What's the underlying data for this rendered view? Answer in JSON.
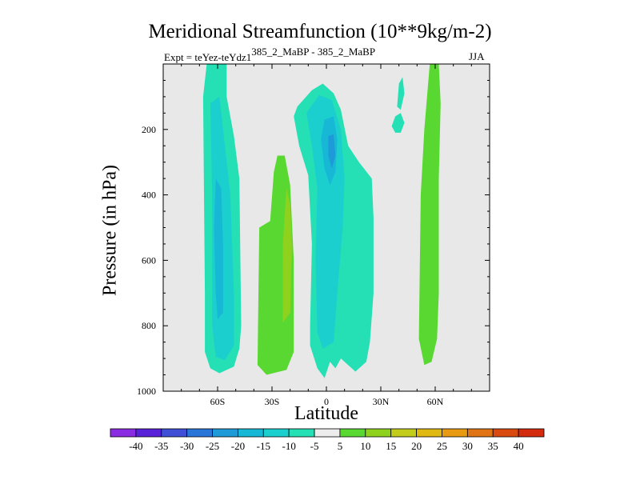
{
  "chart_data": {
    "type": "contour",
    "title": "Meridional Streamfunction (10**9kg/m-2)",
    "subtitle_left": "Expt = teYez-teYdz1",
    "subtitle_left_super": "385_2_MaBP - 385_2_MaBP",
    "subtitle_right": "JJA",
    "xlabel": "Latitude",
    "ylabel": "Pressure (in hPa)",
    "xlim": [
      -90,
      90
    ],
    "ylim": [
      1000,
      0
    ],
    "x_ticks": [
      {
        "value": -60,
        "label": "60S"
      },
      {
        "value": -30,
        "label": "30S"
      },
      {
        "value": 0,
        "label": "0"
      },
      {
        "value": 30,
        "label": "30N"
      },
      {
        "value": 60,
        "label": "60N"
      }
    ],
    "y_ticks": [
      {
        "value": 200,
        "label": "200"
      },
      {
        "value": 400,
        "label": "400"
      },
      {
        "value": 600,
        "label": "600"
      },
      {
        "value": 800,
        "label": "800"
      },
      {
        "value": 1000,
        "label": "1000"
      }
    ],
    "colorbar": {
      "labels": [
        "-40",
        "-35",
        "-30",
        "-25",
        "-20",
        "-15",
        "-10",
        "-5",
        "5",
        "10",
        "15",
        "20",
        "25",
        "30",
        "35",
        "40"
      ],
      "colors": [
        "#8a2ce2",
        "#5a22d8",
        "#3f4fd6",
        "#2a76d8",
        "#1e9ad8",
        "#16b8d6",
        "#1ccfcf",
        "#24e0b4",
        "#ececec",
        "#5ad832",
        "#8fd21e",
        "#c2cc1a",
        "#e0b812",
        "#e89a12",
        "#e07414",
        "#d84a10",
        "#d42a0e"
      ]
    },
    "regions": [
      {
        "name": "southern-cell",
        "level": "-5",
        "points": [
          [
            -66,
            0
          ],
          [
            -55,
            0
          ],
          [
            -55,
            100
          ],
          [
            -51,
            220
          ],
          [
            -48,
            350
          ],
          [
            -47,
            800
          ],
          [
            -48,
            870
          ],
          [
            -51,
            925
          ],
          [
            -59,
            945
          ],
          [
            -64,
            930
          ],
          [
            -67,
            880
          ],
          [
            -67,
            700
          ],
          [
            -68,
            100
          ]
        ]
      },
      {
        "name": "southern-cell-core",
        "level": "-10",
        "points": [
          [
            -64,
            120
          ],
          [
            -59,
            100
          ],
          [
            -56,
            250
          ],
          [
            -53,
            400
          ],
          [
            -51,
            700
          ],
          [
            -51,
            860
          ],
          [
            -56,
            905
          ],
          [
            -61,
            895
          ],
          [
            -63,
            800
          ],
          [
            -63,
            400
          ]
        ]
      },
      {
        "name": "southern-cell-inner",
        "level": "-15",
        "points": [
          [
            -61,
            350
          ],
          [
            -58,
            380
          ],
          [
            -57,
            550
          ],
          [
            -57,
            760
          ],
          [
            -60,
            780
          ],
          [
            -61,
            700
          ],
          [
            -62,
            500
          ]
        ]
      },
      {
        "name": "sh-subtropical-pos",
        "level": "5",
        "points": [
          [
            -27,
            280
          ],
          [
            -23,
            280
          ],
          [
            -20,
            370
          ],
          [
            -18,
            600
          ],
          [
            -18,
            880
          ],
          [
            -22,
            935
          ],
          [
            -33,
            950
          ],
          [
            -38,
            920
          ],
          [
            -37,
            500
          ],
          [
            -31,
            480
          ],
          [
            -29,
            330
          ]
        ]
      },
      {
        "name": "sh-subtropical-pos-core",
        "level": "10",
        "points": [
          [
            -22,
            380
          ],
          [
            -20,
            430
          ],
          [
            -19,
            560
          ],
          [
            -20,
            760
          ],
          [
            -24,
            790
          ],
          [
            -24,
            550
          ]
        ]
      },
      {
        "name": "equatorial-cell",
        "level": "-5",
        "points": [
          [
            -16,
            130
          ],
          [
            -8,
            80
          ],
          [
            -2,
            60
          ],
          [
            4,
            90
          ],
          [
            8,
            140
          ],
          [
            12,
            250
          ],
          [
            18,
            300
          ],
          [
            25,
            350
          ],
          [
            26,
            470
          ],
          [
            26,
            700
          ],
          [
            24,
            850
          ],
          [
            22,
            910
          ],
          [
            16,
            940
          ],
          [
            8,
            900
          ],
          [
            5,
            930
          ],
          [
            2,
            910
          ],
          [
            -1,
            960
          ],
          [
            -5,
            930
          ],
          [
            -9,
            860
          ],
          [
            -9,
            800
          ],
          [
            -8,
            550
          ],
          [
            -10,
            340
          ],
          [
            -15,
            250
          ],
          [
            -18,
            160
          ]
        ]
      },
      {
        "name": "equatorial-cell-core",
        "level": "-10",
        "points": [
          [
            -11,
            150
          ],
          [
            -4,
            95
          ],
          [
            3,
            110
          ],
          [
            8,
            200
          ],
          [
            10,
            350
          ],
          [
            9,
            500
          ],
          [
            6,
            700
          ],
          [
            4,
            850
          ],
          [
            -2,
            870
          ],
          [
            -5,
            820
          ],
          [
            -6,
            600
          ],
          [
            -5,
            380
          ],
          [
            -8,
            250
          ]
        ]
      },
      {
        "name": "equatorial-cell-inner",
        "level": "-15",
        "points": [
          [
            -1,
            170
          ],
          [
            4,
            160
          ],
          [
            6,
            230
          ],
          [
            5,
            330
          ],
          [
            2,
            370
          ],
          [
            -1,
            320
          ],
          [
            -3,
            230
          ]
        ]
      },
      {
        "name": "equatorial-cell-peak",
        "level": "-20",
        "points": [
          [
            1,
            220
          ],
          [
            4,
            215
          ],
          [
            5,
            280
          ],
          [
            3,
            320
          ],
          [
            1,
            280
          ]
        ]
      },
      {
        "name": "nh-neg-blob",
        "level": "-5",
        "points": [
          [
            38,
            160
          ],
          [
            41,
            150
          ],
          [
            43,
            180
          ],
          [
            41,
            210
          ],
          [
            38,
            210
          ],
          [
            36,
            190
          ]
        ]
      },
      {
        "name": "nh-neg-blob-upper",
        "level": "-5",
        "points": [
          [
            40,
            60
          ],
          [
            42,
            40
          ],
          [
            43,
            90
          ],
          [
            41,
            140
          ],
          [
            39,
            130
          ]
        ]
      },
      {
        "name": "nh-polar-pos",
        "level": "5",
        "points": [
          [
            57,
            0
          ],
          [
            62,
            0
          ],
          [
            63,
            120
          ],
          [
            62,
            350
          ],
          [
            62,
            700
          ],
          [
            61,
            840
          ],
          [
            58,
            910
          ],
          [
            54,
            920
          ],
          [
            51,
            840
          ],
          [
            52,
            400
          ],
          [
            54,
            200
          ]
        ]
      }
    ]
  }
}
